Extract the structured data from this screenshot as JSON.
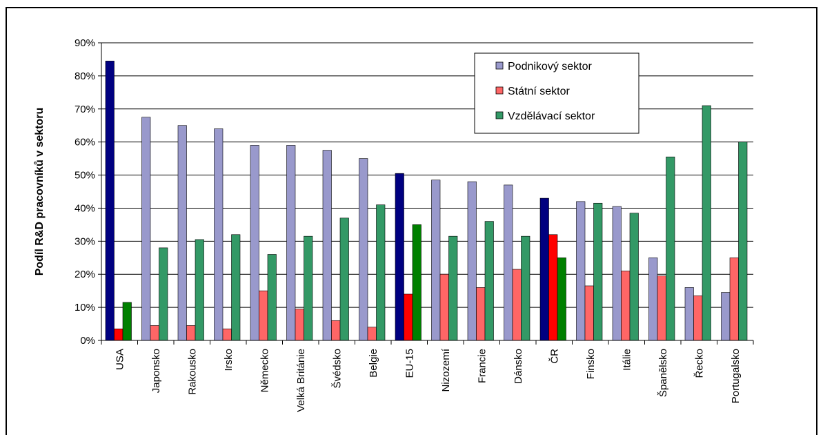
{
  "chart_data": {
    "type": "bar",
    "title": "",
    "xlabel": "",
    "ylabel": "Podíl R&D pracovníků v sektoru",
    "ylim": [
      0,
      90
    ],
    "yticks": [
      "0%",
      "10%",
      "20%",
      "30%",
      "40%",
      "50%",
      "60%",
      "70%",
      "80%",
      "90%"
    ],
    "grid": "horizontal",
    "legend_position": "top-right",
    "categories": [
      "USA",
      "Japonsko",
      "Rakousko",
      "Irsko",
      "Německo",
      "Velká Británie",
      "Švédsko",
      "Belgie",
      "EU-15",
      "Nizozemí",
      "Francie",
      "Dánsko",
      "ČR",
      "Finsko",
      "Itálie",
      "Španělsko",
      "Řecko",
      "Portugalsko"
    ],
    "highlighted_categories": [
      "USA",
      "EU-15",
      "ČR"
    ],
    "series": [
      {
        "name": "Podnikový sektor",
        "color": "#9999cc",
        "highlight_color": "#000080",
        "values": [
          84.5,
          67.5,
          65,
          64,
          59,
          59,
          57.5,
          55,
          50.5,
          48.5,
          48,
          47,
          43,
          42,
          40.5,
          25,
          16,
          14.5
        ]
      },
      {
        "name": "Státní sektor",
        "color": "#ff6666",
        "highlight_color": "#ff0000",
        "values": [
          3.5,
          4.5,
          4.5,
          3.5,
          15,
          9.5,
          6,
          4,
          14,
          20,
          16,
          21.5,
          32,
          16.5,
          21,
          19.5,
          13.5,
          25
        ]
      },
      {
        "name": "Vzdělávací sektor",
        "color": "#339966",
        "highlight_color": "#008000",
        "values": [
          11.5,
          28,
          30.5,
          32,
          26,
          31.5,
          37,
          41,
          35,
          31.5,
          36,
          31.5,
          25,
          41.5,
          38.5,
          55.5,
          71,
          60
        ]
      }
    ]
  }
}
